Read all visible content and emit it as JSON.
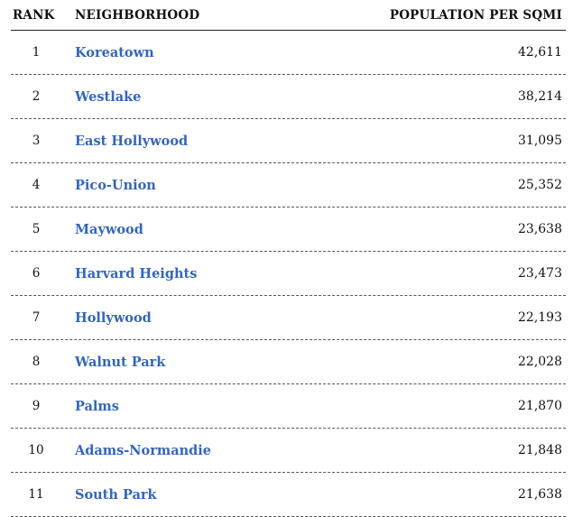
{
  "headers": {
    "rank": "RANK",
    "neighborhood": "NEIGHBORHOOD",
    "population": "POPULATION PER SQMI"
  },
  "rows": [
    {
      "rank": "1",
      "name": "Koreatown",
      "population": "42,611"
    },
    {
      "rank": "2",
      "name": "Westlake",
      "population": "38,214"
    },
    {
      "rank": "3",
      "name": "East Hollywood",
      "population": "31,095"
    },
    {
      "rank": "4",
      "name": "Pico-Union",
      "population": "25,352"
    },
    {
      "rank": "5",
      "name": "Maywood",
      "population": "23,638"
    },
    {
      "rank": "6",
      "name": "Harvard Heights",
      "population": "23,473"
    },
    {
      "rank": "7",
      "name": "Hollywood",
      "population": "22,193"
    },
    {
      "rank": "8",
      "name": "Walnut Park",
      "population": "22,028"
    },
    {
      "rank": "9",
      "name": "Palms",
      "population": "21,870"
    },
    {
      "rank": "10",
      "name": "Adams-Normandie",
      "population": "21,848"
    },
    {
      "rank": "11",
      "name": "South Park",
      "population": "21,638"
    }
  ],
  "colors": {
    "link": "#3566b8",
    "text": "#111111"
  }
}
